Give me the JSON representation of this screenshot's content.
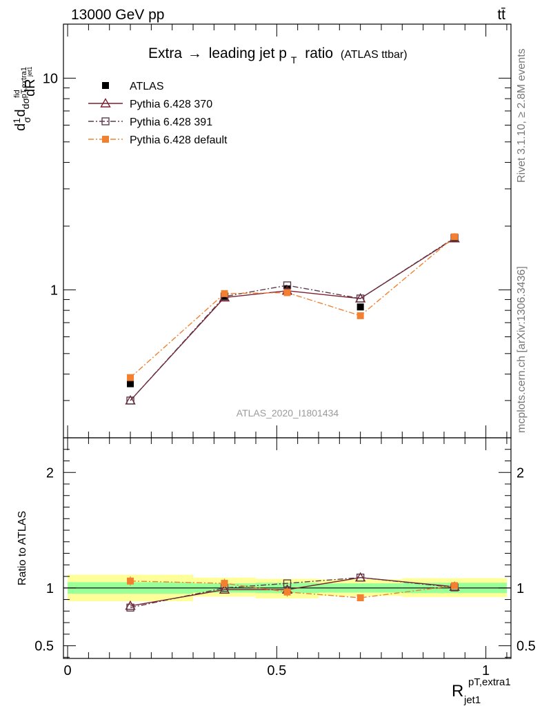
{
  "header": {
    "process": "13000 GeV pp",
    "final_state": "tt̄"
  },
  "side_text": {
    "rivet": "Rivet 3.1.10, ≥ 2.8M events",
    "site": "mcplots.cern.ch [arXiv:1306.3436]"
  },
  "analysis_tag": "ATLAS_2020_I1801434",
  "chart_data": [
    {
      "type": "line",
      "title": "Extra → leading jet pT ratio",
      "title_main": "Extra",
      "title_arrow": "→",
      "title_mid": "leading jet p",
      "title_sub": "T",
      "title_end": "ratio",
      "title_note": "(ATLAS ttbar)",
      "ylabel": "1/σ dσfid/dRpT,extra1jet1",
      "yscale": "log",
      "xlim": [
        -0.01,
        1.06
      ],
      "ylim": [
        0.2,
        18
      ],
      "y_ticks": [
        1,
        10
      ],
      "y_tick_labels": [
        "1",
        "10"
      ],
      "x": [
        0.15,
        0.375,
        0.525,
        0.7,
        0.925
      ],
      "series": [
        {
          "name": "ATLAS",
          "values": [
            0.36,
            0.93,
            1.01,
            0.83,
            1.75
          ],
          "yerr": [
            0.01,
            0.02,
            0.02,
            0.02,
            0.04
          ],
          "color": "#000000",
          "marker": "filled-square",
          "line": "none"
        },
        {
          "name": "Pythia 6.428 370",
          "values": [
            0.3,
            0.92,
            0.99,
            0.91,
            1.75
          ],
          "color": "#7b1e2e",
          "marker": "open-triangle",
          "line": "solid"
        },
        {
          "name": "Pythia 6.428 391",
          "values": [
            0.3,
            0.93,
            1.05,
            0.91,
            1.76
          ],
          "color": "#5a3a4a",
          "marker": "open-square",
          "line": "dashdot"
        },
        {
          "name": "Pythia 6.428 default",
          "values": [
            0.385,
            0.96,
            0.97,
            0.755,
            1.78
          ],
          "color": "#f28030",
          "marker": "filled-square",
          "line": "dashdot"
        }
      ],
      "grid": false,
      "legend_position": "top-left"
    },
    {
      "type": "line",
      "ylabel": "Ratio to ATLAS",
      "xlabel_main": "R",
      "xlabel_sup": "pT,extra1",
      "xlabel_sub": "jet1",
      "xlim": [
        -0.01,
        1.06
      ],
      "ylim": [
        0.39,
        2.3
      ],
      "x_ticks": [
        0,
        0.5,
        1
      ],
      "x_tick_labels": [
        "0",
        "0.5",
        "1"
      ],
      "y_ticks": [
        0.5,
        1,
        2
      ],
      "y_tick_labels": [
        "0.5",
        "1",
        "2"
      ],
      "bands": [
        {
          "x0": 0.0,
          "x1": 0.3,
          "inner": [
            0.95,
            1.05
          ],
          "outer": [
            0.885,
            1.115
          ]
        },
        {
          "x0": 0.3,
          "x1": 0.45,
          "inner": [
            0.96,
            1.04
          ],
          "outer": [
            0.925,
            1.09
          ]
        },
        {
          "x0": 0.45,
          "x1": 0.6,
          "inner": [
            0.955,
            1.045
          ],
          "outer": [
            0.91,
            1.08
          ]
        },
        {
          "x0": 0.6,
          "x1": 0.8,
          "inner": [
            0.96,
            1.04
          ],
          "outer": [
            0.93,
            1.075
          ]
        },
        {
          "x0": 0.8,
          "x1": 1.05,
          "inner": [
            0.955,
            1.045
          ],
          "outer": [
            0.92,
            1.085
          ]
        }
      ],
      "x": [
        0.15,
        0.375,
        0.525,
        0.7,
        0.925
      ],
      "series": [
        {
          "name": "Pythia 6.428 370",
          "values": [
            0.845,
            0.985,
            0.985,
            1.09,
            1.01
          ],
          "color": "#7b1e2e",
          "marker": "open-triangle",
          "line": "solid"
        },
        {
          "name": "Pythia 6.428 391",
          "values": [
            0.83,
            1.0,
            1.04,
            1.09,
            1.005
          ],
          "color": "#5a3a4a",
          "marker": "open-square",
          "line": "dashdot"
        },
        {
          "name": "Pythia 6.428 default",
          "values": [
            1.06,
            1.04,
            0.965,
            0.915,
            1.02
          ],
          "yerr": [
            0.04,
            0.04,
            0.04,
            0.03,
            0.025
          ],
          "color": "#f28030",
          "marker": "filled-square",
          "line": "dashdot"
        }
      ]
    }
  ]
}
